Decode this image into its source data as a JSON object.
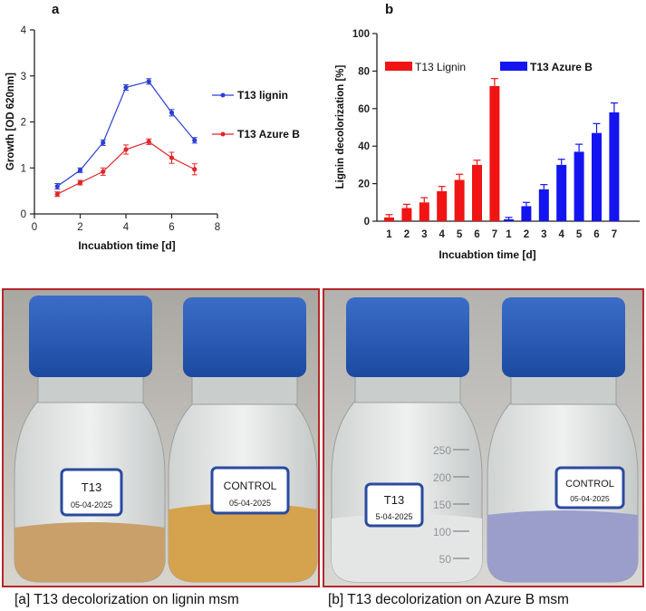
{
  "panel_letters": {
    "a": "a",
    "b": "b"
  },
  "chart_data": [
    {
      "type": "line",
      "xlabel": "Incuabtion time [d]",
      "ylabel": "Growth [OD 620nm]",
      "xlim": [
        0,
        8
      ],
      "ylim": [
        0,
        4
      ],
      "xticks": [
        "0",
        "2",
        "4",
        "6",
        "8"
      ],
      "yticks": [
        "0",
        "1",
        "2",
        "3",
        "4"
      ],
      "legend_position": "right",
      "series": [
        {
          "name": "T13 lignin",
          "color": "#2b3fd6",
          "x": [
            1,
            2,
            3,
            4,
            5,
            6,
            7
          ],
          "y": [
            0.6,
            0.95,
            1.55,
            2.75,
            2.88,
            2.2,
            1.6
          ],
          "err": [
            0.06,
            0.05,
            0.06,
            0.06,
            0.06,
            0.07,
            0.06
          ]
        },
        {
          "name": "T13 Azure B",
          "color": "#e0262b",
          "x": [
            1,
            2,
            3,
            4,
            5,
            6,
            7
          ],
          "y": [
            0.43,
            0.68,
            0.92,
            1.4,
            1.57,
            1.22,
            0.97
          ],
          "err": [
            0.05,
            0.05,
            0.08,
            0.1,
            0.06,
            0.12,
            0.12
          ]
        }
      ]
    },
    {
      "type": "bar",
      "xlabel": "Incuabtion time [d]",
      "ylabel": "Lignin decolorization [%]",
      "ylim": [
        0,
        100
      ],
      "yticks": [
        "0",
        "20",
        "40",
        "60",
        "80",
        "100"
      ],
      "legend_position": "top",
      "series": [
        {
          "name": "T13 Lignin",
          "color": "#f01414",
          "categories": [
            "1",
            "2",
            "3",
            "4",
            "5",
            "6",
            "7"
          ],
          "values": [
            2,
            7,
            10,
            16,
            22,
            30,
            72
          ],
          "err": [
            1.5,
            2,
            2.5,
            2.5,
            3,
            2.5,
            4
          ]
        },
        {
          "name": "T13 Azure B",
          "color": "#1414f0",
          "categories": [
            "1",
            "2",
            "3",
            "4",
            "5",
            "6",
            "7"
          ],
          "values": [
            1,
            8,
            17,
            30,
            37,
            47,
            58
          ],
          "err": [
            1,
            2,
            2.5,
            3,
            4,
            5,
            5
          ]
        }
      ]
    }
  ],
  "photos": [
    {
      "caption": "[a] T13 decolorization on lignin msm",
      "bottles": [
        {
          "label_line1": "T13",
          "label_line2": "05-04-2025",
          "liquid": "#c9a06a"
        },
        {
          "label_line1": "CONTROL",
          "label_line2": "05-04-2025",
          "liquid": "#d5a24e"
        }
      ]
    },
    {
      "caption": "[b] T13 decolorization on Azure B msm",
      "bottles": [
        {
          "label_line1": "T13",
          "label_line2": "5-04-2025",
          "liquid": "#e4e6e6"
        },
        {
          "label_line1": "CONTROL",
          "label_line2": "05-04-2025",
          "liquid": "#9b9ecb"
        }
      ],
      "scale_marks": [
        "250",
        "200",
        "150",
        "100",
        "50"
      ]
    }
  ]
}
